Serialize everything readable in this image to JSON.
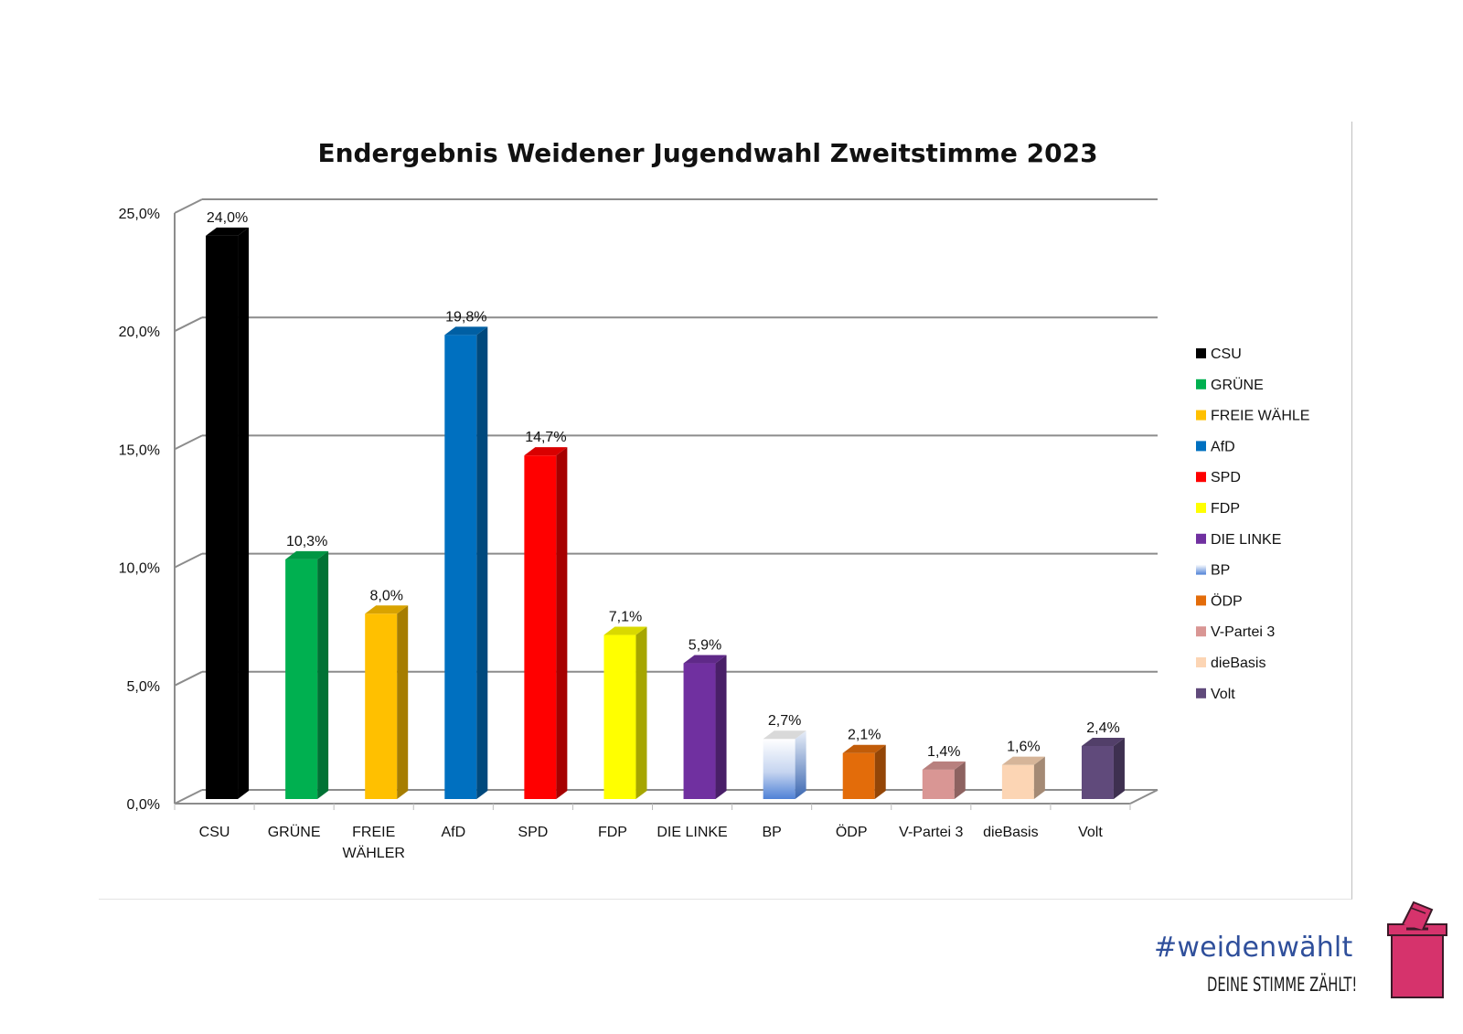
{
  "chart_data": {
    "type": "bar",
    "title": "Endergebnis Weidener Jugendwahl Zweitstimme 2023",
    "xlabel": "",
    "ylabel": "",
    "ylim": [
      0,
      25
    ],
    "ytick_values": [
      0,
      5,
      10,
      15,
      20,
      25
    ],
    "ytick_labels": [
      "0,0%",
      "5,0%",
      "10,0%",
      "15,0%",
      "20,0%",
      "25,0%"
    ],
    "categories": [
      "CSU",
      "GRÜNE",
      "FREIE WÄHLER",
      "AfD",
      "SPD",
      "FDP",
      "DIE LINKE",
      "BP",
      "ÖDP",
      "V-Partei 3",
      "dieBasis",
      "Volt"
    ],
    "category_labels": [
      [
        "CSU"
      ],
      [
        "GRÜNE"
      ],
      [
        "FREIE",
        "WÄHLER"
      ],
      [
        "AfD"
      ],
      [
        "SPD"
      ],
      [
        "FDP"
      ],
      [
        "DIE LINKE"
      ],
      [
        "BP"
      ],
      [
        "ÖDP"
      ],
      [
        "V-Partei 3"
      ],
      [
        "dieBasis"
      ],
      [
        "Volt"
      ]
    ],
    "values": [
      24.0,
      10.3,
      8.0,
      19.8,
      14.7,
      7.1,
      5.9,
      2.7,
      2.1,
      1.4,
      1.6,
      2.4
    ],
    "value_labels": [
      "24,0%",
      "10,3%",
      "8,0%",
      "19,8%",
      "14,7%",
      "7,1%",
      "5,9%",
      "2,7%",
      "2,1%",
      "1,4%",
      "1,6%",
      "2,4%"
    ],
    "colors": [
      "#000000",
      "#00b050",
      "#ffc000",
      "#0070c0",
      "#ff0000",
      "#ffff00",
      "#7030a0",
      "#4f81d6",
      "#e36c0a",
      "#d99694",
      "#fcd5b4",
      "#604a7b"
    ],
    "legend": {
      "position": "right",
      "entries": [
        "CSU",
        "GRÜNE",
        "FREIE WÄHLE",
        "AfD",
        "SPD",
        "FDP",
        "DIE LINKE",
        "BP",
        "ÖDP",
        "V-Partei 3",
        "dieBasis",
        "Volt"
      ]
    },
    "grid": true,
    "style": "3d-column"
  },
  "branding": {
    "hashtag": "#weidenwählt",
    "slogan": "DEINE STIMME ZÄHLT!",
    "accent_color": "#d6336c",
    "text_color": "#2f4f9b"
  }
}
